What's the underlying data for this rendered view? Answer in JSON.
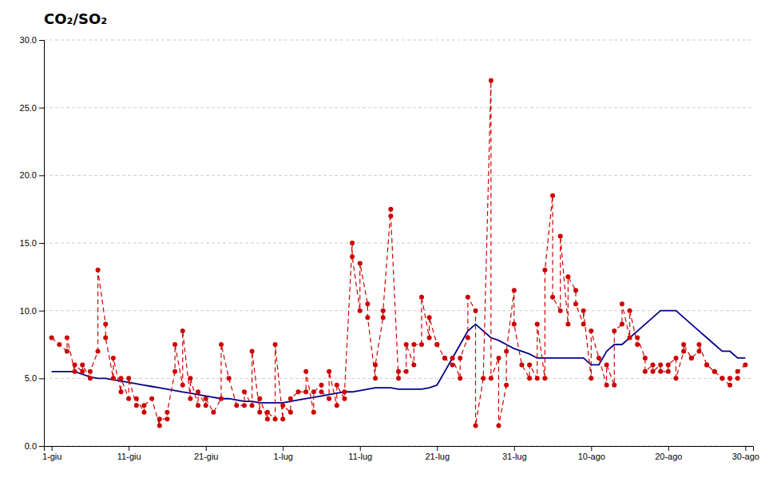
{
  "chart_data": {
    "type": "line",
    "title": "CO₂/SO₂",
    "xlim": [
      -1,
      91
    ],
    "xticks": [
      {
        "value": 0,
        "label": "1-giu"
      },
      {
        "value": 10,
        "label": "11-giu"
      },
      {
        "value": 20,
        "label": "21-giu"
      },
      {
        "value": 30,
        "label": "1-lug"
      },
      {
        "value": 40,
        "label": "11-lug"
      },
      {
        "value": 50,
        "label": "21-lug"
      },
      {
        "value": 60,
        "label": "31-lug"
      },
      {
        "value": 70,
        "label": "10-ago"
      },
      {
        "value": 80,
        "label": "20-ago"
      },
      {
        "value": 90,
        "label": "30-ago"
      }
    ],
    "ylim": [
      0.0,
      30.0
    ],
    "yticks": [
      {
        "value": 0.0,
        "label": "0.0"
      },
      {
        "value": 5.0,
        "label": "5.0"
      },
      {
        "value": 10.0,
        "label": "10.0"
      },
      {
        "value": 15.0,
        "label": "15.0"
      },
      {
        "value": 20.0,
        "label": "20.0"
      },
      {
        "value": 25.0,
        "label": "25.0"
      },
      {
        "value": 30.0,
        "label": "30.0"
      }
    ],
    "grid": "y",
    "series": [
      {
        "color": "#cc0000",
        "line_style": "dashed",
        "marker": "circle",
        "x": [
          0,
          1,
          2,
          2,
          3,
          3,
          4,
          4,
          5,
          5,
          6,
          6,
          7,
          7,
          8,
          8,
          9,
          9,
          10,
          10,
          11,
          11,
          12,
          12,
          13,
          14,
          14,
          15,
          15,
          16,
          16,
          17,
          17,
          18,
          18,
          19,
          19,
          20,
          20,
          21,
          22,
          22,
          23,
          24,
          25,
          25,
          26,
          26,
          27,
          27,
          28,
          28,
          29,
          29,
          30,
          30,
          31,
          31,
          32,
          33,
          33,
          34,
          34,
          35,
          35,
          36,
          36,
          37,
          37,
          38,
          38,
          39,
          39,
          40,
          40,
          41,
          41,
          42,
          42,
          43,
          43,
          44,
          44,
          45,
          45,
          46,
          46,
          47,
          47,
          48,
          48,
          49,
          49,
          50,
          50,
          51,
          51,
          52,
          52,
          53,
          53,
          54,
          54,
          55,
          55,
          56,
          57,
          57,
          58,
          58,
          59,
          59,
          60,
          60,
          61,
          62,
          62,
          63,
          63,
          64,
          64,
          65,
          65,
          66,
          66,
          67,
          67,
          68,
          68,
          69,
          69,
          70,
          70,
          71,
          72,
          72,
          73,
          73,
          74,
          74,
          75,
          75,
          76,
          76,
          77,
          77,
          78,
          78,
          79,
          79,
          80,
          80,
          81,
          81,
          82,
          82,
          83,
          83,
          84,
          84,
          85,
          85,
          86,
          86,
          87,
          87,
          88,
          88,
          89,
          89,
          90
        ],
        "values": [
          8.0,
          7.5,
          7.0,
          8.0,
          5.5,
          6.0,
          5.5,
          6.0,
          5.0,
          5.5,
          7.0,
          13.0,
          9.0,
          8.0,
          5.0,
          6.5,
          4.0,
          5.0,
          3.5,
          5.0,
          3.0,
          3.5,
          2.5,
          3.0,
          3.5,
          1.5,
          2.0,
          2.0,
          2.5,
          5.5,
          7.5,
          4.5,
          8.5,
          3.5,
          5.0,
          3.0,
          4.0,
          3.0,
          3.5,
          2.5,
          3.5,
          7.5,
          5.0,
          3.0,
          3.0,
          4.0,
          3.0,
          7.0,
          2.5,
          3.5,
          2.0,
          2.5,
          2.0,
          7.5,
          2.0,
          3.0,
          2.5,
          3.5,
          4.0,
          4.0,
          5.5,
          2.5,
          4.0,
          4.5,
          4.0,
          3.5,
          5.5,
          3.0,
          4.5,
          3.5,
          4.0,
          15.0,
          14.0,
          10.0,
          13.5,
          10.5,
          9.5,
          5.0,
          6.0,
          9.5,
          10.0,
          17.5,
          17.0,
          5.0,
          5.5,
          5.5,
          7.5,
          6.0,
          7.5,
          7.5,
          11.0,
          8.0,
          9.5,
          7.5,
          7.5,
          6.5,
          6.5,
          6.0,
          6.5,
          5.0,
          6.5,
          8.0,
          11.0,
          10.0,
          1.5,
          5.0,
          27.0,
          5.0,
          6.5,
          1.5,
          4.5,
          7.0,
          11.5,
          9.0,
          6.0,
          5.0,
          6.0,
          5.0,
          9.0,
          5.0,
          13.0,
          18.5,
          11.0,
          10.0,
          15.5,
          9.0,
          12.5,
          11.5,
          10.5,
          9.0,
          10.0,
          5.0,
          8.5,
          6.5,
          4.5,
          6.0,
          4.5,
          8.5,
          9.0,
          10.5,
          8.0,
          10.0,
          7.5,
          8.0,
          6.5,
          5.5,
          6.0,
          5.5,
          6.0,
          5.5,
          5.5,
          6.0,
          6.5,
          5.0,
          7.0,
          7.5,
          6.5,
          6.5,
          7.0,
          7.5,
          6.0,
          6.0,
          5.5,
          5.5,
          5.0,
          5.0,
          4.5,
          5.0,
          5.0,
          5.5,
          6.0
        ]
      },
      {
        "color": "#00008B",
        "line_style": "solid",
        "x": [
          0,
          1,
          2,
          3,
          4,
          5,
          6,
          7,
          8,
          9,
          10,
          11,
          12,
          13,
          14,
          15,
          16,
          17,
          18,
          19,
          20,
          21,
          22,
          23,
          24,
          25,
          26,
          27,
          28,
          29,
          30,
          31,
          32,
          33,
          34,
          35,
          36,
          37,
          38,
          39,
          40,
          41,
          42,
          43,
          44,
          45,
          46,
          47,
          48,
          49,
          50,
          51,
          52,
          53,
          54,
          55,
          56,
          57,
          58,
          59,
          60,
          61,
          62,
          63,
          64,
          65,
          66,
          67,
          68,
          69,
          70,
          71,
          72,
          73,
          74,
          75,
          76,
          77,
          78,
          79,
          80,
          81,
          82,
          83,
          84,
          85,
          86,
          87,
          88,
          89,
          90
        ],
        "values": [
          5.5,
          5.5,
          5.5,
          5.5,
          5.3,
          5.1,
          5.0,
          5.0,
          4.9,
          4.8,
          4.7,
          4.6,
          4.5,
          4.4,
          4.3,
          4.2,
          4.1,
          4.0,
          3.9,
          3.8,
          3.7,
          3.6,
          3.5,
          3.5,
          3.4,
          3.3,
          3.3,
          3.2,
          3.2,
          3.2,
          3.2,
          3.3,
          3.4,
          3.5,
          3.6,
          3.7,
          3.8,
          3.9,
          4.0,
          4.0,
          4.1,
          4.2,
          4.3,
          4.3,
          4.3,
          4.2,
          4.2,
          4.2,
          4.2,
          4.3,
          4.5,
          5.5,
          6.5,
          7.5,
          8.5,
          9.0,
          8.5,
          8.0,
          7.8,
          7.5,
          7.2,
          7.0,
          6.8,
          6.5,
          6.5,
          6.5,
          6.5,
          6.5,
          6.5,
          6.5,
          6.0,
          6.0,
          7.0,
          7.5,
          7.5,
          8.0,
          8.5,
          9.0,
          9.5,
          10.0,
          10.0,
          10.0,
          9.5,
          9.0,
          8.5,
          8.0,
          7.5,
          7.0,
          7.0,
          6.5,
          6.5
        ]
      }
    ]
  }
}
